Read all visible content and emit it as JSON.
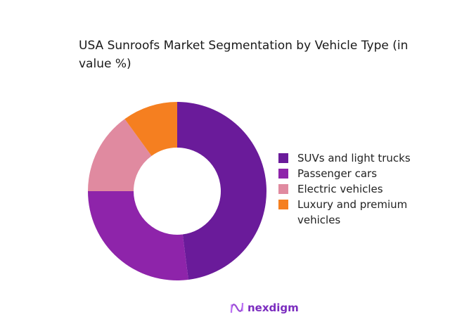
{
  "chart_data": {
    "type": "pie",
    "donut": true,
    "title": "USA Sunroofs Market Segmentation by Vehicle Type (in value %)",
    "categories": [
      "SUVs and light trucks",
      "Passenger cars",
      "Electric vehicles",
      "Luxury and premium vehicles"
    ],
    "values": [
      48,
      27,
      15,
      10
    ],
    "colors": [
      "#6A1B9A",
      "#8E24AA",
      "#E08AA0",
      "#F57F20"
    ],
    "legend_position": "right"
  },
  "brand": {
    "name": "nexdigm"
  }
}
